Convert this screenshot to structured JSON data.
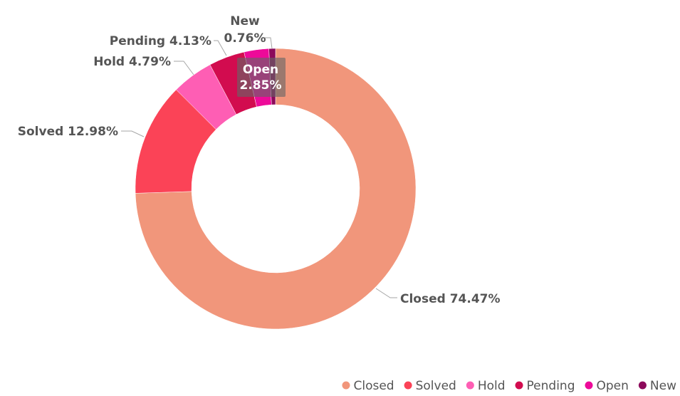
{
  "chart_data": {
    "type": "pie",
    "donut": true,
    "categories": [
      "Closed",
      "Solved",
      "Hold",
      "Pending",
      "Open",
      "New"
    ],
    "values": [
      74.47,
      12.98,
      4.79,
      4.13,
      2.85,
      0.76
    ],
    "value_labels": [
      "74.47%",
      "12.98%",
      "4.79%",
      "4.13%",
      "2.85%",
      "0.76%"
    ],
    "colors": [
      "#F1967B",
      "#FB4357",
      "#FE5EB4",
      "#D20C4F",
      "#ED0A99",
      "#8C0A5B"
    ],
    "legend_position": "bottom-right",
    "title": ""
  }
}
